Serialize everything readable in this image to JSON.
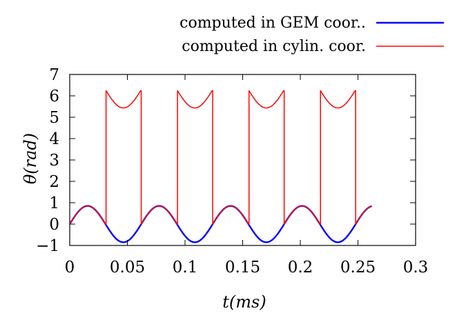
{
  "chart_data": {
    "type": "line",
    "xlabel": "t(ms)",
    "ylabel": "θ(rad)",
    "xlim": [
      0,
      0.3
    ],
    "ylim": [
      -1,
      7
    ],
    "xticks": [
      "0",
      "0.05",
      "0.1",
      "0.15",
      "0.2",
      "0.25",
      "0.3"
    ],
    "yticks": [
      "−1",
      "0",
      "1",
      "2",
      "3",
      "4",
      "5",
      "6",
      "7"
    ],
    "grid": false,
    "legend_position": "top-right",
    "series": [
      {
        "name": "computed in GEM coor..",
        "color": "#0000ff",
        "x": [
          0,
          0.0155,
          0.031,
          0.0465,
          0.062,
          0.0775,
          0.093,
          0.1085,
          0.124,
          0.1395,
          0.155,
          0.1705,
          0.186,
          0.2015,
          0.217,
          0.2325,
          0.248,
          0.262
        ],
        "y": [
          0,
          0.85,
          0,
          -0.85,
          0,
          0.85,
          0,
          -0.85,
          0,
          0.85,
          0,
          -0.85,
          0,
          0.85,
          0,
          -0.85,
          0,
          0.82
        ]
      },
      {
        "name": "computed in cylin. coor.",
        "color": "#ff0000",
        "x": [
          0,
          0.0155,
          0.031,
          0.031,
          0.0465,
          0.062,
          0.062,
          0.0775,
          0.093,
          0.093,
          0.1085,
          0.124,
          0.124,
          0.1395,
          0.155,
          0.155,
          0.1705,
          0.186,
          0.186,
          0.2015,
          0.217,
          0.217,
          0.2325,
          0.248,
          0.248,
          0.262
        ],
        "y": [
          0,
          0.85,
          0,
          6.283,
          5.433,
          6.283,
          0,
          0.85,
          0,
          6.283,
          5.433,
          6.283,
          0,
          0.85,
          0,
          6.283,
          5.433,
          6.283,
          0,
          0.85,
          0,
          6.283,
          5.433,
          6.283,
          0,
          0.82
        ]
      }
    ]
  }
}
